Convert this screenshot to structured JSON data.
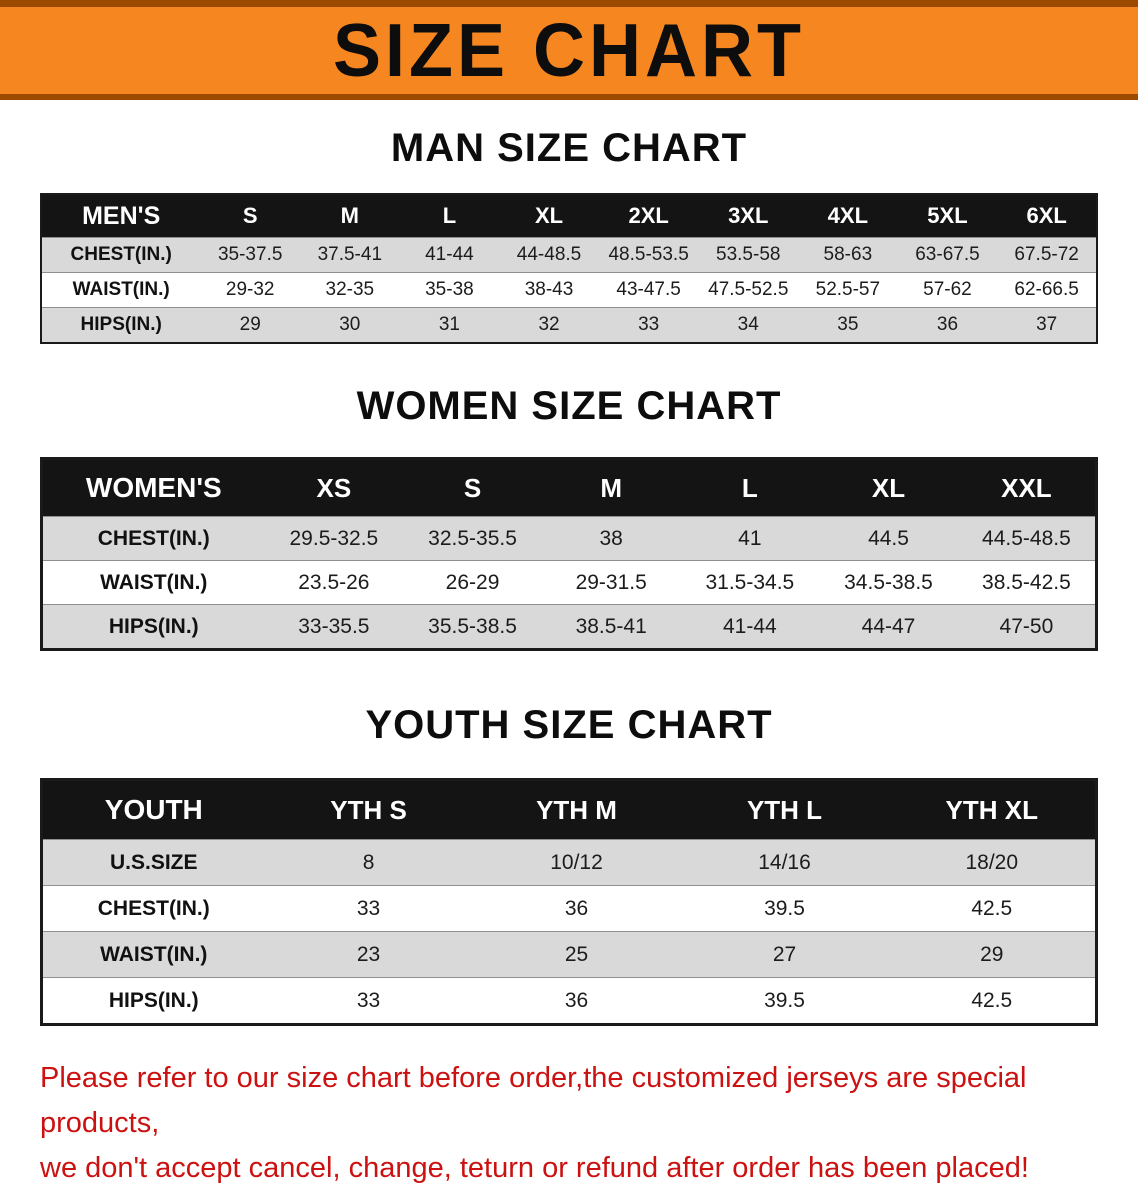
{
  "banner": {
    "title": "SIZE CHART",
    "bg_color": "#F6861F",
    "edge_color": "#9C4A00",
    "text_color": "#0D0D0D"
  },
  "sections": [
    {
      "id": "men",
      "heading": "MAN SIZE CHART",
      "table": {
        "header": [
          "MEN'S",
          "S",
          "M",
          "L",
          "XL",
          "2XL",
          "3XL",
          "4XL",
          "5XL",
          "6XL"
        ],
        "rows": [
          [
            "CHEST(IN.)",
            "35-37.5",
            "37.5-41",
            "41-44",
            "44-48.5",
            "48.5-53.5",
            "53.5-58",
            "58-63",
            "63-67.5",
            "67.5-72"
          ],
          [
            "WAIST(IN.)",
            "29-32",
            "32-35",
            "35-38",
            "38-43",
            "43-47.5",
            "47.5-52.5",
            "52.5-57",
            "57-62",
            "62-66.5"
          ],
          [
            "HIPS(IN.)",
            "29",
            "30",
            "31",
            "32",
            "33",
            "34",
            "35",
            "36",
            "37"
          ]
        ]
      }
    },
    {
      "id": "women",
      "heading": "WOMEN SIZE CHART",
      "table": {
        "header": [
          "WOMEN'S",
          "XS",
          "S",
          "M",
          "L",
          "XL",
          "XXL"
        ],
        "rows": [
          [
            "CHEST(IN.)",
            "29.5-32.5",
            "32.5-35.5",
            "38",
            "41",
            "44.5",
            "44.5-48.5"
          ],
          [
            "WAIST(IN.)",
            "23.5-26",
            "26-29",
            "29-31.5",
            "31.5-34.5",
            "34.5-38.5",
            "38.5-42.5"
          ],
          [
            "HIPS(IN.)",
            "33-35.5",
            "35.5-38.5",
            "38.5-41",
            "41-44",
            "44-47",
            "47-50"
          ]
        ]
      }
    },
    {
      "id": "youth",
      "heading": "YOUTH SIZE CHART",
      "table": {
        "header": [
          "YOUTH",
          "YTH S",
          "YTH M",
          "YTH L",
          "YTH XL"
        ],
        "rows": [
          [
            "U.S.SIZE",
            "8",
            "10/12",
            "14/16",
            "18/20"
          ],
          [
            "CHEST(IN.)",
            "33",
            "36",
            "39.5",
            "42.5"
          ],
          [
            "WAIST(IN.)",
            "23",
            "25",
            "27",
            "29"
          ],
          [
            "HIPS(IN.)",
            "33",
            "36",
            "39.5",
            "42.5"
          ]
        ]
      }
    }
  ],
  "footer": {
    "text_color": "#CC1111",
    "line1": "Please refer to our size chart before order,the customized jerseys are special products,",
    "line2": "we don't accept cancel, change, teturn or refund after order has been placed!"
  }
}
